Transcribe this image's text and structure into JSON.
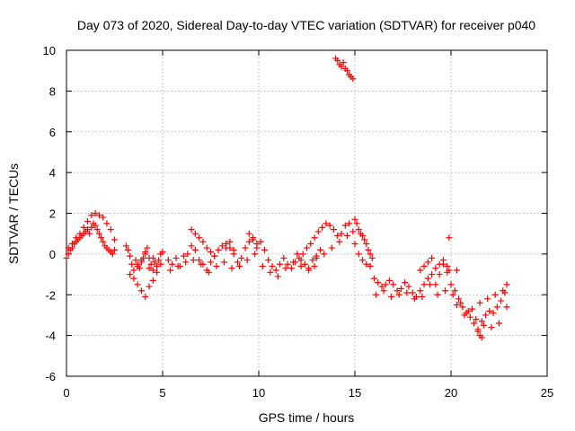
{
  "chart_data": {
    "type": "scatter",
    "title": "Day 073 of 2020, Sidereal Day-to-day VTEC variation (SDTVAR) for receiver p040",
    "xlabel": "GPS time / hours",
    "ylabel": "SDTVAR / TECUs",
    "xlim": [
      0,
      25
    ],
    "ylim": [
      -6,
      10
    ],
    "xticks": [
      "0",
      "5",
      "10",
      "15",
      "20",
      "25"
    ],
    "yticks": [
      "-6",
      "-4",
      "-2",
      "0",
      "2",
      "4",
      "6",
      "8",
      "10"
    ],
    "grid": true,
    "marker": "plus",
    "series": [
      {
        "name": "SDTVAR",
        "color": "#ff0000",
        "x": [
          0.0,
          0.1,
          0.2,
          0.3,
          0.4,
          0.5,
          0.6,
          0.7,
          0.8,
          0.9,
          1.0,
          1.1,
          1.2,
          1.3,
          1.4,
          1.5,
          1.6,
          1.7,
          1.8,
          1.9,
          2.0,
          2.1,
          2.2,
          2.3,
          2.4,
          2.5,
          0.1,
          0.3,
          0.5,
          0.7,
          0.9,
          1.1,
          1.3,
          1.5,
          1.7,
          1.9,
          2.1,
          2.3,
          2.5,
          3.1,
          3.2,
          3.3,
          3.4,
          3.5,
          3.6,
          3.7,
          3.8,
          3.9,
          4.0,
          4.1,
          4.2,
          4.3,
          4.4,
          4.5,
          4.6,
          4.7,
          4.8,
          4.9,
          5.0,
          3.3,
          3.5,
          3.7,
          3.9,
          4.1,
          4.3,
          4.5,
          4.7,
          4.9,
          3.7,
          3.9,
          4.1,
          4.3,
          4.5,
          5.3,
          5.5,
          5.7,
          5.9,
          6.1,
          6.3,
          6.5,
          6.7,
          6.9,
          7.1,
          7.3,
          7.5,
          7.7,
          7.9,
          8.1,
          8.3,
          8.5,
          8.7,
          8.9,
          9.1,
          9.3,
          9.5,
          9.7,
          9.9,
          5.4,
          5.8,
          6.2,
          6.6,
          7.0,
          7.4,
          7.8,
          8.2,
          8.6,
          9.0,
          9.4,
          9.8,
          6.5,
          6.7,
          6.9,
          7.1,
          7.3,
          7.5,
          7.7,
          8.3,
          8.5,
          8.7,
          9.5,
          9.7,
          9.9,
          10.1,
          10.3,
          10.5,
          10.7,
          10.9,
          11.1,
          11.3,
          11.5,
          11.7,
          11.9,
          12.1,
          12.3,
          12.5,
          12.7,
          12.9,
          13.1,
          13.3,
          13.5,
          13.7,
          13.9,
          14.1,
          14.3,
          14.5,
          14.7,
          14.9,
          10.2,
          10.6,
          11.0,
          11.4,
          11.8,
          12.2,
          12.6,
          13.0,
          13.4,
          13.8,
          14.2,
          14.6,
          12.0,
          12.2,
          12.4,
          12.6,
          12.8,
          13.0,
          13.2,
          12.9,
          14.0,
          14.1,
          14.2,
          14.3,
          14.4,
          14.5,
          14.6,
          14.7,
          14.8,
          14.9,
          15.0,
          15.1,
          15.2,
          15.3,
          15.4,
          15.5,
          15.6,
          15.7,
          15.8,
          15.9,
          15.0,
          15.2,
          15.4,
          15.6,
          15.8,
          16.0,
          16.2,
          16.4,
          16.6,
          16.8,
          17.0,
          17.2,
          17.4,
          17.6,
          17.8,
          18.0,
          18.2,
          18.4,
          18.6,
          18.8,
          19.0,
          19.2,
          19.4,
          19.6,
          19.8,
          16.1,
          16.5,
          16.9,
          17.3,
          17.7,
          18.1,
          18.5,
          18.9,
          19.3,
          19.7,
          18.4,
          18.6,
          18.8,
          19.0,
          19.2,
          19.4,
          19.6,
          19.8,
          19.9,
          19.9,
          20.3,
          20.0,
          20.2,
          20.4,
          20.6,
          20.8,
          21.0,
          21.2,
          21.4,
          21.6,
          21.8,
          22.0,
          22.2,
          22.4,
          22.6,
          22.8,
          22.9,
          20.1,
          20.5,
          20.9,
          21.3,
          21.7,
          22.1,
          22.5,
          22.9,
          20.3,
          20.7,
          21.1,
          21.5,
          21.9,
          22.3,
          22.7,
          21.4,
          21.5,
          21.6
        ],
        "y": [
          -0.2,
          0.0,
          0.2,
          0.3,
          0.5,
          0.6,
          0.7,
          0.8,
          0.9,
          1.0,
          1.1,
          1.2,
          1.0,
          1.3,
          1.5,
          1.4,
          1.2,
          1.0,
          0.8,
          0.6,
          0.4,
          0.3,
          0.2,
          0.1,
          0.0,
          0.2,
          0.3,
          0.5,
          0.8,
          1.0,
          1.3,
          1.6,
          1.9,
          2.0,
          1.9,
          1.8,
          1.5,
          1.2,
          0.7,
          0.4,
          0.2,
          -0.1,
          -0.5,
          -0.8,
          -0.3,
          -0.5,
          -0.7,
          -0.4,
          -0.2,
          0.1,
          0.3,
          -0.2,
          -0.5,
          -0.8,
          -0.4,
          -0.6,
          -0.3,
          0.0,
          0.1,
          -1.0,
          -1.2,
          -0.6,
          -0.3,
          0.0,
          -0.7,
          -0.2,
          -0.9,
          -0.5,
          -1.5,
          -1.8,
          -2.1,
          -1.6,
          -1.3,
          -0.3,
          -0.5,
          -0.2,
          -0.6,
          -0.1,
          0.0,
          0.4,
          0.2,
          -0.3,
          -0.5,
          -0.8,
          -0.4,
          -0.1,
          0.2,
          0.4,
          0.5,
          0.3,
          0.0,
          -0.4,
          -0.2,
          0.3,
          0.6,
          0.8,
          0.5,
          -0.8,
          -0.6,
          -0.4,
          -0.3,
          -0.5,
          -0.9,
          -0.6,
          -0.4,
          -0.7,
          -0.6,
          -0.3,
          0.0,
          1.2,
          1.0,
          0.8,
          0.6,
          0.3,
          0.1,
          -0.1,
          0.3,
          0.6,
          0.2,
          1.0,
          0.7,
          0.3,
          0.6,
          0.2,
          -0.3,
          -0.6,
          -0.8,
          -0.5,
          -0.2,
          -0.5,
          -0.7,
          -0.4,
          -0.2,
          0.0,
          0.3,
          0.5,
          0.8,
          1.1,
          1.3,
          1.5,
          1.4,
          1.2,
          0.9,
          1.0,
          1.4,
          1.5,
          1.1,
          -0.6,
          -0.9,
          -1.1,
          -0.7,
          -0.4,
          -0.6,
          -0.8,
          -0.2,
          0.0,
          0.3,
          0.6,
          0.9,
          0.0,
          -0.3,
          -0.5,
          -0.7,
          -0.3,
          -0.1,
          0.2,
          -0.6,
          9.6,
          9.5,
          9.3,
          9.2,
          9.4,
          9.1,
          9.0,
          8.8,
          8.7,
          8.6,
          1.7,
          1.5,
          1.2,
          1.0,
          0.9,
          0.7,
          0.5,
          0.2,
          0.0,
          -0.2,
          0.5,
          0.0,
          -0.3,
          -0.5,
          -0.6,
          -1.2,
          -1.4,
          -1.6,
          -1.5,
          -1.3,
          -1.5,
          -1.8,
          -1.7,
          -1.4,
          -1.6,
          -1.9,
          -2.1,
          -1.8,
          -1.5,
          -1.2,
          -1.0,
          -1.5,
          -1.0,
          -0.5,
          -0.9,
          -2.0,
          -1.8,
          -2.1,
          -2.0,
          -1.9,
          -2.2,
          -2.1,
          -1.5,
          -2.0,
          -1.8,
          -0.8,
          -0.6,
          -0.4,
          -0.2,
          -0.7,
          -0.5,
          -0.3,
          -0.6,
          -0.8,
          0.8,
          -0.8,
          -1.5,
          -1.8,
          -2.2,
          -2.6,
          -2.9,
          -3.1,
          -3.4,
          -3.7,
          -3.3,
          -3.0,
          -2.8,
          -2.9,
          -2.6,
          -2.3,
          -1.9,
          -1.5,
          -2.0,
          -2.4,
          -2.8,
          -3.2,
          -3.5,
          -3.6,
          -3.4,
          -2.6,
          -2.5,
          -3.0,
          -2.7,
          -2.4,
          -2.2,
          -2.0,
          -1.8,
          -3.8,
          -4.0,
          -4.1
        ]
      }
    ]
  }
}
